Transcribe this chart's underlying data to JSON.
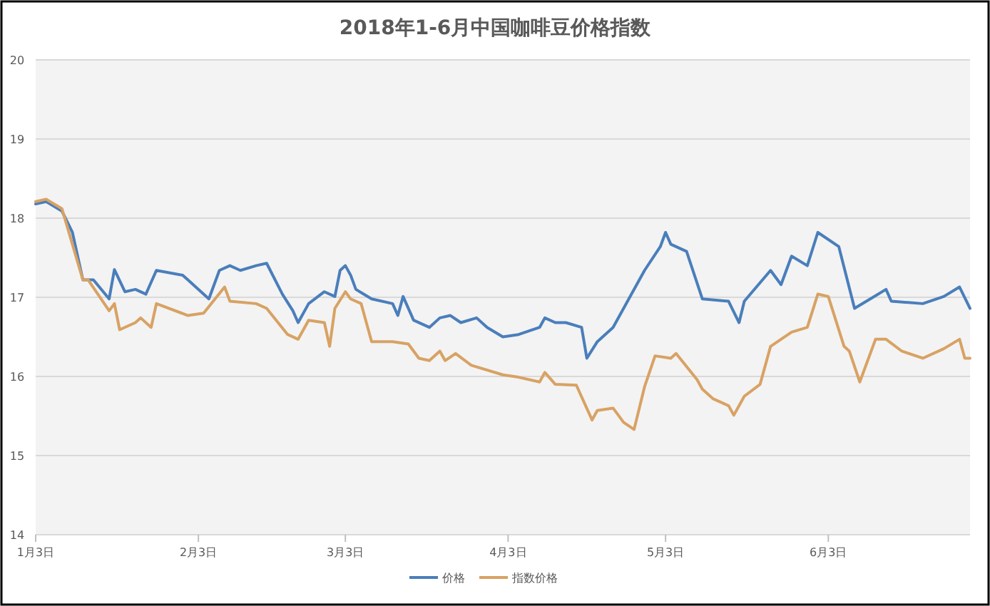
{
  "chart_data": {
    "type": "line",
    "title": "2018年1-6月中国咖啡豆价格指数",
    "xlim": [
      "2018-01-03",
      "2018-06-30"
    ],
    "xticks": [
      {
        "value": "2018-01-03",
        "label": "1月3日"
      },
      {
        "value": "2018-02-03",
        "label": "2月3日"
      },
      {
        "value": "2018-03-03",
        "label": "3月3日"
      },
      {
        "value": "2018-04-03",
        "label": "4月3日"
      },
      {
        "value": "2018-05-03",
        "label": "5月3日"
      },
      {
        "value": "2018-06-03",
        "label": "6月3日"
      }
    ],
    "ylim": [
      14,
      20
    ],
    "yticks": [
      14,
      15,
      16,
      17,
      18,
      19,
      20
    ],
    "grid": "y",
    "legend": "bottom",
    "series": [
      {
        "name": "价格",
        "color": "#4a7ebb",
        "x": [
          "2018-01-03",
          "2018-01-05",
          "2018-01-08",
          "2018-01-10",
          "2018-01-12",
          "2018-01-14",
          "2018-01-17",
          "2018-01-18",
          "2018-01-20",
          "2018-01-22",
          "2018-01-24",
          "2018-01-26",
          "2018-01-31",
          "2018-02-01",
          "2018-02-05",
          "2018-02-07",
          "2018-02-09",
          "2018-02-11",
          "2018-02-14",
          "2018-02-16",
          "2018-02-19",
          "2018-02-21",
          "2018-02-22",
          "2018-02-24",
          "2018-02-27",
          "2018-03-01",
          "2018-03-02",
          "2018-03-03",
          "2018-03-04",
          "2018-03-05",
          "2018-03-08",
          "2018-03-12",
          "2018-03-13",
          "2018-03-14",
          "2018-03-16",
          "2018-03-19",
          "2018-03-21",
          "2018-03-23",
          "2018-03-25",
          "2018-03-28",
          "2018-03-30",
          "2018-04-02",
          "2018-04-05",
          "2018-04-09",
          "2018-04-10",
          "2018-04-12",
          "2018-04-14",
          "2018-04-17",
          "2018-04-18",
          "2018-04-20",
          "2018-04-23",
          "2018-04-26",
          "2018-04-29",
          "2018-05-02",
          "2018-05-03",
          "2018-05-04",
          "2018-05-07",
          "2018-05-10",
          "2018-05-15",
          "2018-05-17",
          "2018-05-18",
          "2018-05-23",
          "2018-05-25",
          "2018-05-27",
          "2018-05-30",
          "2018-06-01",
          "2018-06-05",
          "2018-06-08",
          "2018-06-11",
          "2018-06-14",
          "2018-06-15",
          "2018-06-21",
          "2018-06-25",
          "2018-06-28",
          "2018-06-30"
        ],
        "values": [
          18.18,
          18.21,
          18.09,
          17.82,
          17.22,
          17.22,
          16.98,
          17.35,
          17.07,
          17.1,
          17.04,
          17.34,
          17.28,
          17.22,
          16.98,
          17.34,
          17.4,
          17.34,
          17.4,
          17.43,
          17.04,
          16.83,
          16.68,
          16.92,
          17.07,
          17.01,
          17.34,
          17.4,
          17.28,
          17.1,
          16.98,
          16.92,
          16.77,
          17.01,
          16.71,
          16.62,
          16.74,
          16.77,
          16.68,
          16.74,
          16.62,
          16.5,
          16.53,
          16.62,
          16.74,
          16.68,
          16.68,
          16.62,
          16.23,
          16.44,
          16.62,
          16.98,
          17.34,
          17.64,
          17.82,
          17.67,
          17.58,
          16.98,
          16.95,
          16.68,
          16.95,
          17.34,
          17.16,
          17.52,
          17.4,
          17.82,
          17.64,
          16.86,
          16.98,
          17.1,
          16.95,
          16.92,
          17.01,
          17.13,
          16.86
        ]
      },
      {
        "name": "指数价格",
        "color": "#d8a264",
        "x": [
          "2018-01-03",
          "2018-01-05",
          "2018-01-08",
          "2018-01-12",
          "2018-01-13",
          "2018-01-17",
          "2018-01-18",
          "2018-01-19",
          "2018-01-22",
          "2018-01-23",
          "2018-01-25",
          "2018-01-26",
          "2018-02-01",
          "2018-02-04",
          "2018-02-08",
          "2018-02-09",
          "2018-02-14",
          "2018-02-16",
          "2018-02-20",
          "2018-02-22",
          "2018-02-24",
          "2018-02-27",
          "2018-02-28",
          "2018-03-01",
          "2018-03-03",
          "2018-03-04",
          "2018-03-06",
          "2018-03-08",
          "2018-03-12",
          "2018-03-15",
          "2018-03-17",
          "2018-03-19",
          "2018-03-21",
          "2018-03-22",
          "2018-03-24",
          "2018-03-27",
          "2018-04-02",
          "2018-04-05",
          "2018-04-09",
          "2018-04-10",
          "2018-04-12",
          "2018-04-16",
          "2018-04-19",
          "2018-04-20",
          "2018-04-23",
          "2018-04-25",
          "2018-04-27",
          "2018-04-29",
          "2018-05-01",
          "2018-05-04",
          "2018-05-05",
          "2018-05-09",
          "2018-05-10",
          "2018-05-12",
          "2018-05-15",
          "2018-05-16",
          "2018-05-18",
          "2018-05-21",
          "2018-05-23",
          "2018-05-27",
          "2018-05-30",
          "2018-06-01",
          "2018-06-03",
          "2018-06-06",
          "2018-06-07",
          "2018-06-09",
          "2018-06-12",
          "2018-06-14",
          "2018-06-17",
          "2018-06-21",
          "2018-06-25",
          "2018-06-28",
          "2018-06-29",
          "2018-06-30"
        ],
        "values": [
          18.21,
          18.24,
          18.12,
          17.22,
          17.22,
          16.83,
          16.92,
          16.59,
          16.68,
          16.74,
          16.62,
          16.92,
          16.77,
          16.8,
          17.13,
          16.95,
          16.92,
          16.86,
          16.53,
          16.47,
          16.71,
          16.68,
          16.38,
          16.86,
          17.07,
          16.98,
          16.92,
          16.44,
          16.44,
          16.41,
          16.23,
          16.2,
          16.32,
          16.2,
          16.29,
          16.14,
          16.02,
          15.99,
          15.93,
          16.05,
          15.9,
          15.89,
          15.45,
          15.57,
          15.6,
          15.42,
          15.33,
          15.87,
          16.26,
          16.23,
          16.29,
          15.96,
          15.84,
          15.72,
          15.63,
          15.51,
          15.75,
          15.9,
          16.38,
          16.56,
          16.62,
          17.04,
          17.01,
          16.38,
          16.32,
          15.93,
          16.47,
          16.47,
          16.32,
          16.23,
          16.35,
          16.47,
          16.23,
          16.23
        ]
      }
    ]
  }
}
